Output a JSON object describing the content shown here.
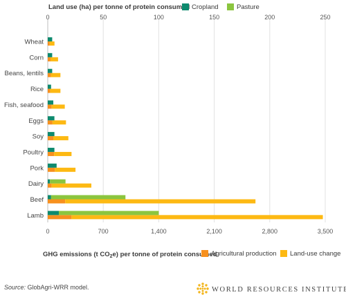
{
  "chart_data": {
    "type": "bar",
    "categories": [
      "Wheat",
      "Corn",
      "Beans, lentils",
      "Rice",
      "Fish, seafood",
      "Eggs",
      "Soy",
      "Poultry",
      "Pork",
      "Dairy",
      "Beef",
      "Lamb"
    ],
    "top_axis": {
      "title": "Land use (ha) per tonne of protein consumed",
      "ticks": [
        0,
        50,
        100,
        150,
        200,
        250
      ],
      "xlim": [
        0,
        250
      ],
      "series": [
        {
          "name": "Cropland",
          "color": "#0e8a6e",
          "values": [
            4,
            4,
            4,
            3,
            5,
            6,
            6,
            6,
            8,
            2,
            3,
            10
          ]
        },
        {
          "name": "Pasture",
          "color": "#8bc53f",
          "values": [
            0,
            0,
            0,
            0,
            0,
            0,
            0,
            0,
            0,
            14,
            67,
            90
          ]
        }
      ]
    },
    "bottom_axis": {
      "title": "GHG emissions (t CO",
      "title_sub": "2",
      "title_rest": "e) per tonne of protein consumed",
      "ticks": [
        0,
        700,
        1400,
        2100,
        2800,
        3500
      ],
      "tick_labels": [
        "0",
        "700",
        "1,400",
        "2,100",
        "2,800",
        "3,500"
      ],
      "xlim": [
        0,
        3500
      ],
      "series": [
        {
          "name": "Agricultural production",
          "color": "#f7901e",
          "values": [
            25,
            35,
            40,
            30,
            50,
            60,
            70,
            80,
            90,
            50,
            220,
            300
          ]
        },
        {
          "name": "Land-use change",
          "color": "#fdb913",
          "values": [
            60,
            95,
            120,
            130,
            165,
            170,
            190,
            220,
            260,
            500,
            2400,
            3170
          ]
        }
      ]
    },
    "grid": true
  },
  "footer": {
    "source_label": "Source:",
    "source_text": " GlobAgri-WRR model.",
    "logo_text": "WORLD RESOURCES INSTITUTE"
  }
}
